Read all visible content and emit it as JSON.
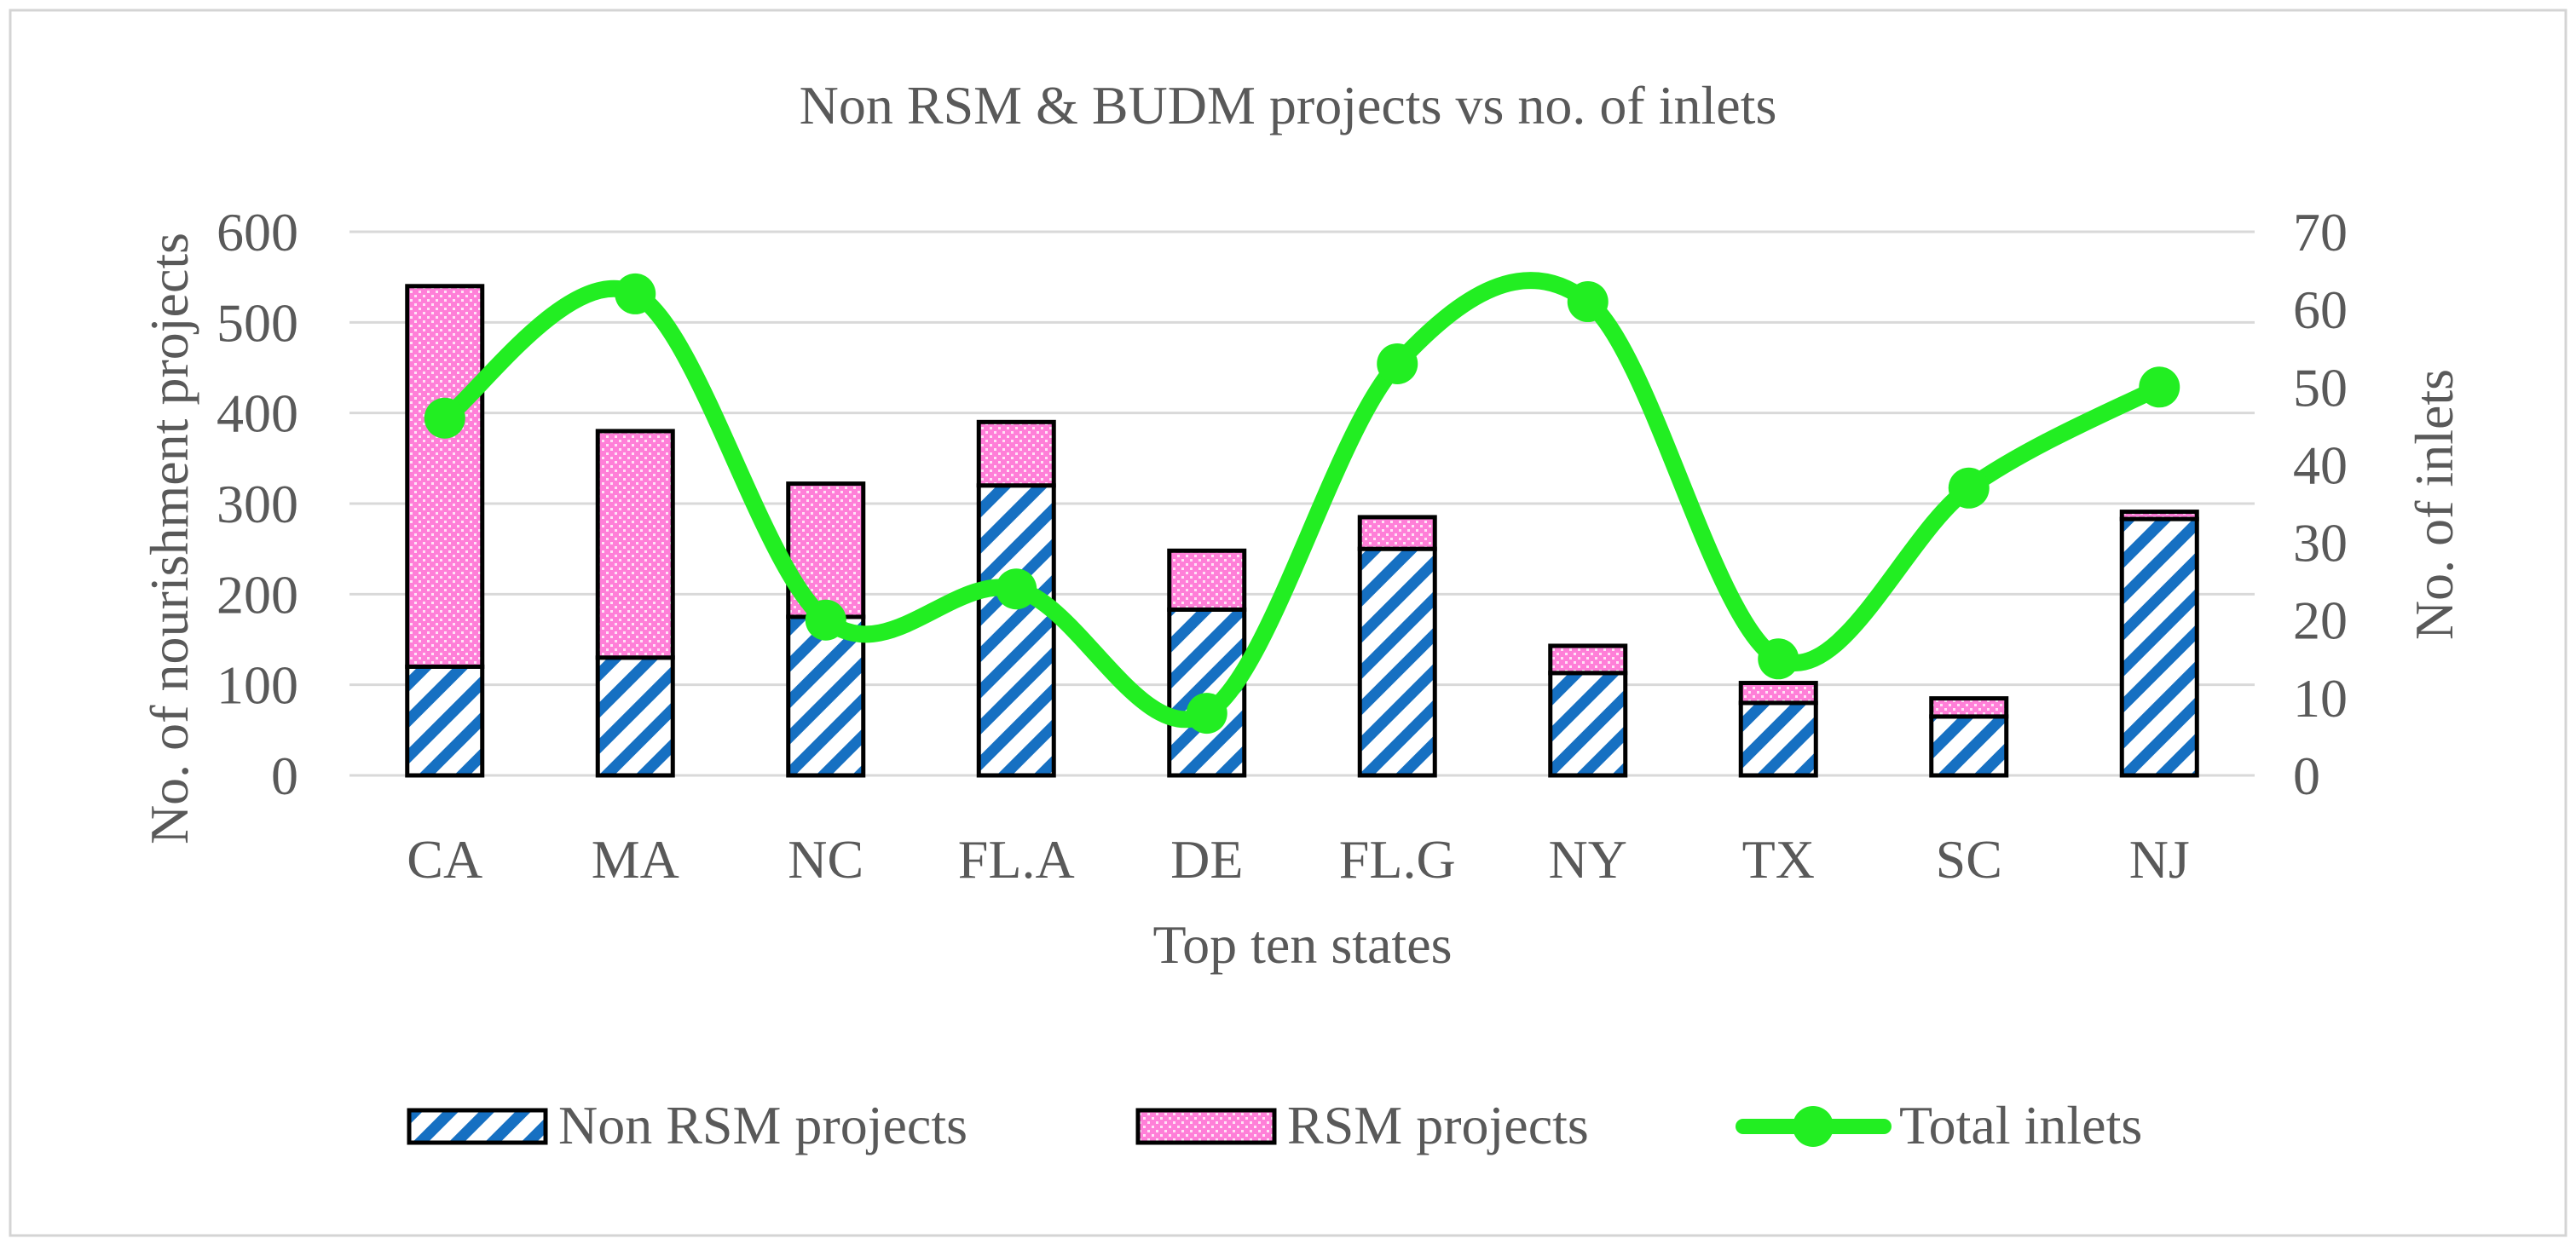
{
  "chart_data": {
    "type": "bar",
    "stacked": true,
    "title": "Non RSM & BUDM projects vs no. of inlets",
    "xlabel": "Top ten states",
    "ylabel": "No. of nourishment projects",
    "y2label": "No. of inlets",
    "categories": [
      "CA",
      "MA",
      "NC",
      "FL.A",
      "DE",
      "FL.G",
      "NY",
      "TX",
      "SC",
      "NJ"
    ],
    "ylim": [
      0,
      600
    ],
    "yticks": [
      0,
      100,
      200,
      300,
      400,
      500,
      600
    ],
    "y2lim": [
      0,
      70
    ],
    "y2ticks": [
      0,
      10,
      20,
      30,
      40,
      50,
      60,
      70
    ],
    "grid": true,
    "legend_position": "bottom",
    "series": [
      {
        "name": "Non RSM projects",
        "type": "bar",
        "axis": "left",
        "values": [
          120,
          130,
          175,
          320,
          183,
          250,
          113,
          80,
          65,
          283
        ],
        "colors": {
          "stripe": "#1670C2",
          "fill": "#FFFFFF"
        }
      },
      {
        "name": "RSM projects",
        "type": "bar",
        "axis": "left",
        "values": [
          420,
          250,
          147,
          70,
          65,
          35,
          30,
          22,
          20,
          8
        ],
        "colors": {
          "fill": "#FF7FD8",
          "dot": "#FFE3F6"
        }
      },
      {
        "name": "Total inlets",
        "type": "line",
        "axis": "right",
        "smooth": true,
        "values": [
          46,
          62,
          20,
          24,
          8,
          53,
          61,
          15,
          37,
          50
        ],
        "colors": {
          "line": "#22EE22"
        }
      }
    ]
  }
}
